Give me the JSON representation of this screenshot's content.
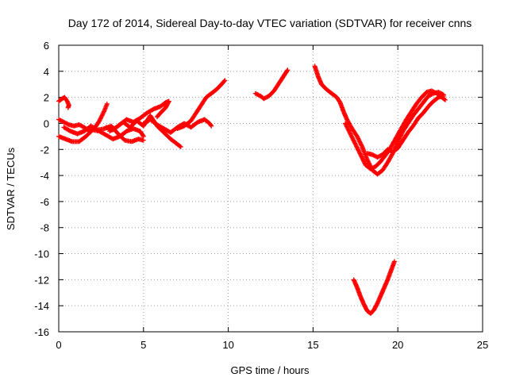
{
  "chart_data": {
    "type": "scatter",
    "title": "Day 172 of 2014, Sidereal Day-to-day VTEC variation (SDTVAR) for receiver cnns",
    "xlabel": "GPS time / hours",
    "ylabel": "SDTVAR / TECUs",
    "xlim": [
      0,
      25
    ],
    "ylim": [
      -16,
      6
    ],
    "xticks": [
      0,
      5,
      10,
      15,
      20,
      25
    ],
    "yticks": [
      -16,
      -14,
      -12,
      -10,
      -8,
      -6,
      -4,
      -2,
      0,
      2,
      4,
      6
    ],
    "grid": true,
    "marker": "+",
    "color": "#ff0000",
    "series": [
      {
        "name": "track-a",
        "points": [
          [
            0.0,
            1.7
          ],
          [
            0.2,
            1.9
          ],
          [
            0.35,
            2.0
          ],
          [
            0.5,
            1.7
          ],
          [
            0.6,
            1.4
          ],
          [
            0.55,
            1.2
          ]
        ]
      },
      {
        "name": "track-b",
        "points": [
          [
            0.0,
            0.3
          ],
          [
            0.3,
            0.1
          ],
          [
            0.6,
            -0.1
          ],
          [
            0.9,
            -0.2
          ],
          [
            1.2,
            -0.1
          ],
          [
            1.5,
            -0.3
          ],
          [
            1.8,
            -0.6
          ],
          [
            2.1,
            -0.4
          ],
          [
            2.4,
            0.2
          ],
          [
            2.7,
            1.0
          ],
          [
            2.85,
            1.5
          ]
        ]
      },
      {
        "name": "track-c",
        "points": [
          [
            0.0,
            -1.0
          ],
          [
            0.4,
            -1.2
          ],
          [
            0.8,
            -1.4
          ],
          [
            1.2,
            -1.4
          ],
          [
            1.6,
            -1.0
          ],
          [
            2.0,
            -0.5
          ],
          [
            2.4,
            -0.6
          ],
          [
            2.8,
            -0.9
          ],
          [
            3.2,
            -1.2
          ],
          [
            3.6,
            -1.0
          ],
          [
            4.0,
            -0.6
          ],
          [
            4.4,
            -0.4
          ],
          [
            4.8,
            -0.6
          ],
          [
            5.0,
            -1.0
          ]
        ]
      },
      {
        "name": "track-d",
        "points": [
          [
            0.3,
            -0.3
          ],
          [
            0.7,
            -0.6
          ],
          [
            1.1,
            -0.8
          ],
          [
            1.5,
            -0.6
          ],
          [
            1.9,
            -0.2
          ],
          [
            2.3,
            -0.5
          ],
          [
            2.7,
            -0.4
          ],
          [
            3.1,
            -0.2
          ],
          [
            3.5,
            -0.8
          ],
          [
            3.9,
            -1.3
          ],
          [
            4.3,
            -1.4
          ],
          [
            4.7,
            -1.2
          ],
          [
            5.0,
            -1.3
          ]
        ]
      },
      {
        "name": "track-e",
        "points": [
          [
            2.8,
            -0.3
          ],
          [
            3.2,
            -0.5
          ],
          [
            3.6,
            -0.1
          ],
          [
            4.0,
            0.3
          ],
          [
            4.4,
            0.1
          ],
          [
            4.8,
            0.4
          ],
          [
            5.2,
            0.8
          ],
          [
            5.6,
            1.1
          ],
          [
            6.0,
            1.3
          ],
          [
            6.3,
            1.6
          ],
          [
            6.5,
            1.7
          ],
          [
            6.3,
            1.2
          ],
          [
            6.0,
            0.8
          ],
          [
            5.8,
            0.5
          ]
        ]
      },
      {
        "name": "track-f",
        "points": [
          [
            3.0,
            -0.6
          ],
          [
            3.4,
            -0.3
          ],
          [
            3.8,
            0.1
          ],
          [
            4.2,
            -0.3
          ],
          [
            4.6,
            0.2
          ],
          [
            5.0,
            -0.2
          ],
          [
            5.4,
            0.6
          ],
          [
            5.8,
            -0.2
          ],
          [
            6.2,
            -0.7
          ],
          [
            6.6,
            -1.2
          ],
          [
            7.0,
            -1.6
          ],
          [
            7.2,
            -1.8
          ]
        ]
      },
      {
        "name": "track-g",
        "points": [
          [
            5.0,
            0.0
          ],
          [
            5.4,
            0.3
          ],
          [
            5.8,
            -0.1
          ],
          [
            6.2,
            -0.4
          ],
          [
            6.6,
            -0.7
          ],
          [
            7.0,
            -0.3
          ],
          [
            7.4,
            0.0
          ],
          [
            7.8,
            -0.3
          ],
          [
            8.2,
            0.1
          ],
          [
            8.6,
            0.3
          ],
          [
            8.9,
            0.0
          ],
          [
            9.0,
            -0.2
          ]
        ]
      },
      {
        "name": "track-h",
        "points": [
          [
            7.0,
            -0.4
          ],
          [
            7.4,
            -0.2
          ],
          [
            7.8,
            0.2
          ],
          [
            8.1,
            0.8
          ],
          [
            8.4,
            1.4
          ],
          [
            8.7,
            2.0
          ],
          [
            9.0,
            2.3
          ],
          [
            9.3,
            2.6
          ],
          [
            9.6,
            3.0
          ],
          [
            9.8,
            3.3
          ]
        ]
      },
      {
        "name": "track-i",
        "points": [
          [
            11.6,
            2.3
          ],
          [
            11.9,
            2.1
          ],
          [
            12.1,
            1.9
          ],
          [
            12.4,
            2.1
          ],
          [
            12.7,
            2.5
          ],
          [
            13.0,
            3.1
          ],
          [
            13.2,
            3.5
          ],
          [
            13.4,
            3.9
          ],
          [
            13.5,
            4.1
          ]
        ]
      },
      {
        "name": "track-j",
        "points": [
          [
            15.1,
            4.4
          ],
          [
            15.3,
            3.6
          ],
          [
            15.5,
            3.0
          ],
          [
            15.8,
            2.6
          ],
          [
            16.1,
            2.3
          ],
          [
            16.4,
            2.0
          ],
          [
            16.6,
            1.6
          ],
          [
            16.8,
            0.9
          ],
          [
            17.0,
            0.3
          ],
          [
            17.3,
            -0.4
          ],
          [
            17.6,
            -1.0
          ],
          [
            17.9,
            -1.8
          ],
          [
            18.2,
            -2.8
          ],
          [
            18.5,
            -3.6
          ],
          [
            18.8,
            -3.9
          ],
          [
            19.1,
            -3.6
          ],
          [
            19.4,
            -3.0
          ],
          [
            19.7,
            -2.3
          ],
          [
            20.0,
            -1.4
          ],
          [
            20.3,
            -0.6
          ],
          [
            20.6,
            0.0
          ],
          [
            20.9,
            0.6
          ],
          [
            21.2,
            1.1
          ],
          [
            21.5,
            1.6
          ],
          [
            21.8,
            2.1
          ],
          [
            22.1,
            2.3
          ],
          [
            22.4,
            2.4
          ],
          [
            22.7,
            2.2
          ]
        ]
      },
      {
        "name": "track-k",
        "points": [
          [
            16.9,
            0.0
          ],
          [
            17.2,
            -0.8
          ],
          [
            17.5,
            -1.6
          ],
          [
            17.8,
            -2.4
          ],
          [
            18.1,
            -3.2
          ],
          [
            18.4,
            -3.5
          ],
          [
            18.7,
            -3.3
          ],
          [
            19.0,
            -2.9
          ],
          [
            19.3,
            -2.4
          ],
          [
            19.6,
            -1.8
          ],
          [
            19.9,
            -1.1
          ],
          [
            20.2,
            -0.4
          ],
          [
            20.5,
            0.3
          ],
          [
            20.8,
            0.9
          ],
          [
            21.1,
            1.5
          ],
          [
            21.4,
            2.0
          ],
          [
            21.7,
            2.4
          ],
          [
            22.0,
            2.5
          ],
          [
            22.3,
            2.3
          ],
          [
            22.6,
            2.0
          ],
          [
            22.8,
            1.8
          ]
        ]
      },
      {
        "name": "track-l",
        "points": [
          [
            18.2,
            -2.3
          ],
          [
            18.5,
            -2.4
          ],
          [
            18.8,
            -2.6
          ],
          [
            19.1,
            -2.4
          ],
          [
            19.4,
            -2.0
          ],
          [
            19.7,
            -2.2
          ],
          [
            20.0,
            -1.9
          ],
          [
            20.3,
            -1.3
          ],
          [
            20.6,
            -0.7
          ],
          [
            20.9,
            -0.2
          ],
          [
            21.2,
            0.4
          ],
          [
            21.5,
            0.8
          ],
          [
            21.8,
            1.3
          ],
          [
            22.1,
            1.7
          ],
          [
            22.4,
            2.0
          ],
          [
            22.7,
            2.1
          ]
        ]
      },
      {
        "name": "track-m",
        "points": [
          [
            17.4,
            -12.0
          ],
          [
            17.6,
            -12.6
          ],
          [
            17.8,
            -13.3
          ],
          [
            18.0,
            -13.9
          ],
          [
            18.2,
            -14.4
          ],
          [
            18.4,
            -14.6
          ],
          [
            18.6,
            -14.3
          ],
          [
            18.8,
            -13.8
          ],
          [
            19.0,
            -13.2
          ],
          [
            19.2,
            -12.6
          ],
          [
            19.4,
            -12.0
          ],
          [
            19.6,
            -11.3
          ],
          [
            19.8,
            -10.6
          ]
        ]
      }
    ]
  }
}
